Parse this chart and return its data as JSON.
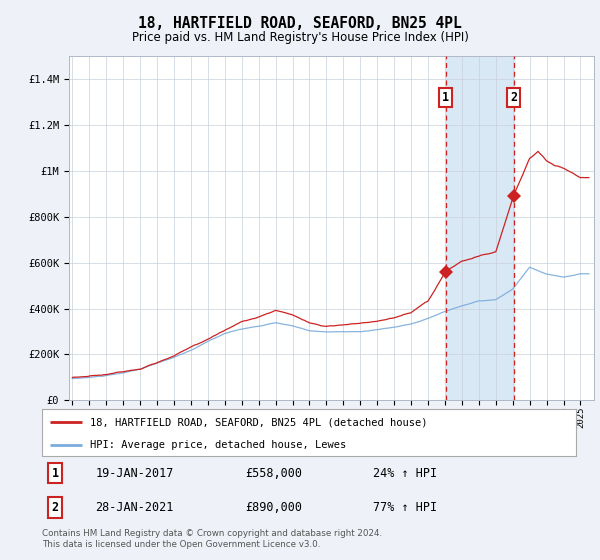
{
  "title": "18, HARTFIELD ROAD, SEAFORD, BN25 4PL",
  "subtitle": "Price paid vs. HM Land Registry's House Price Index (HPI)",
  "legend_line1": "18, HARTFIELD ROAD, SEAFORD, BN25 4PL (detached house)",
  "legend_line2": "HPI: Average price, detached house, Lewes",
  "annotation1_date": "19-JAN-2017",
  "annotation1_price": "£558,000",
  "annotation1_hpi": "24% ↑ HPI",
  "annotation2_date": "28-JAN-2021",
  "annotation2_price": "£890,000",
  "annotation2_hpi": "77% ↑ HPI",
  "sale1_year": 2017.05,
  "sale1_value": 558000,
  "sale2_year": 2021.07,
  "sale2_value": 890000,
  "footer": "Contains HM Land Registry data © Crown copyright and database right 2024.\nThis data is licensed under the Open Government Licence v3.0.",
  "hpi_color": "#7aabdc",
  "price_color": "#cc2222",
  "background_color": "#eef2f8",
  "plot_bg_color": "#ffffff",
  "shade_color": "#d8e8f5",
  "yticks": [
    0,
    200000,
    400000,
    600000,
    800000,
    1000000,
    1200000,
    1400000
  ],
  "ylabels": [
    "£0",
    "£200K",
    "£400K",
    "£600K",
    "£800K",
    "£1M",
    "£1.2M",
    "£1.4M"
  ],
  "ylim": [
    0,
    1500000
  ],
  "xlim_start": 1994.8,
  "xlim_end": 2025.8
}
